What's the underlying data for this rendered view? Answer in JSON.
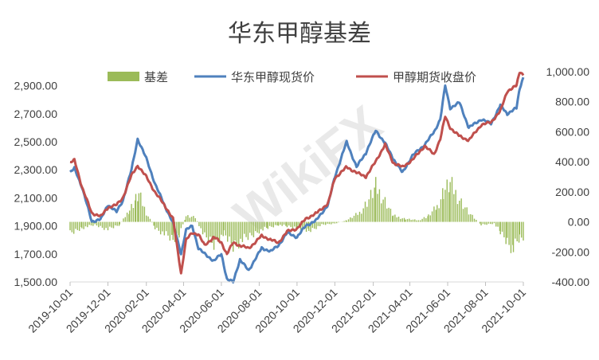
{
  "chart_data": {
    "type": "line",
    "title": "华东甲醇基差",
    "x_ticks": [
      "2019-10-01",
      "2019-12-01",
      "2020-02-01",
      "2020-04-01",
      "2020-06-01",
      "2020-08-01",
      "2020-10-01",
      "2020-12-01",
      "2021-02-01",
      "2021-04-01",
      "2021-06-01",
      "2021-08-01",
      "2021-10-01"
    ],
    "xlim": [
      "2019-10-01",
      "2021-10-01"
    ],
    "y_left": {
      "ylim": [
        1500,
        3000
      ],
      "ticks": [
        "2,900.00",
        "2,700.00",
        "2,500.00",
        "2,300.00",
        "2,100.00",
        "1,900.00",
        "1,700.00",
        "1,500.00"
      ],
      "tick_values": [
        2900,
        2700,
        2500,
        2300,
        2100,
        1900,
        1700,
        1500
      ]
    },
    "y_right": {
      "ylim": [
        -400,
        1000
      ],
      "ticks": [
        "1,000.00",
        "800.00",
        "600.00",
        "400.00",
        "200.00",
        "0.00",
        "-200.00",
        "-400.00"
      ],
      "tick_values": [
        1000,
        800,
        600,
        400,
        200,
        0,
        -200,
        -400
      ]
    },
    "legend_position": "top",
    "grid": false,
    "series": [
      {
        "name": "基差",
        "kind": "bar",
        "axis": "right",
        "color": "#9bbb59",
        "points": [
          [
            "2019-10-01",
            -80
          ],
          [
            "2019-10-20",
            -40
          ],
          [
            "2019-11-10",
            -20
          ],
          [
            "2019-12-01",
            -50
          ],
          [
            "2019-12-20",
            -20
          ],
          [
            "2020-01-05",
            80
          ],
          [
            "2020-01-15",
            150
          ],
          [
            "2020-01-20",
            180
          ],
          [
            "2020-02-01",
            60
          ],
          [
            "2020-02-15",
            -40
          ],
          [
            "2020-03-01",
            -80
          ],
          [
            "2020-03-15",
            -120
          ],
          [
            "2020-03-25",
            -80
          ],
          [
            "2020-04-05",
            40
          ],
          [
            "2020-04-20",
            30
          ],
          [
            "2020-05-05",
            -100
          ],
          [
            "2020-05-20",
            -150
          ],
          [
            "2020-06-05",
            -80
          ],
          [
            "2020-06-20",
            -160
          ],
          [
            "2020-07-05",
            -120
          ],
          [
            "2020-07-20",
            -90
          ],
          [
            "2020-08-01",
            -60
          ],
          [
            "2020-08-15",
            -40
          ],
          [
            "2020-09-01",
            -20
          ],
          [
            "2020-09-15",
            -30
          ],
          [
            "2020-10-01",
            -40
          ],
          [
            "2020-10-20",
            -60
          ],
          [
            "2020-11-10",
            -20
          ],
          [
            "2020-12-01",
            -10
          ],
          [
            "2020-12-20",
            10
          ],
          [
            "2021-01-10",
            60
          ],
          [
            "2021-01-25",
            150
          ],
          [
            "2021-02-05",
            230
          ],
          [
            "2021-02-20",
            140
          ],
          [
            "2021-03-05",
            40
          ],
          [
            "2021-03-25",
            20
          ],
          [
            "2021-04-15",
            10
          ],
          [
            "2021-05-01",
            40
          ],
          [
            "2021-05-15",
            100
          ],
          [
            "2021-05-25",
            200
          ],
          [
            "2021-06-05",
            250
          ],
          [
            "2021-06-20",
            150
          ],
          [
            "2021-07-05",
            60
          ],
          [
            "2021-07-25",
            -20
          ],
          [
            "2021-08-15",
            -10
          ],
          [
            "2021-08-25",
            -70
          ],
          [
            "2021-09-05",
            -130
          ],
          [
            "2021-09-15",
            -180
          ],
          [
            "2021-09-25",
            -110
          ],
          [
            "2021-10-01",
            -100
          ]
        ]
      },
      {
        "name": "华东甲醇现货价",
        "kind": "line",
        "axis": "left",
        "color": "#4f81bd",
        "points": [
          [
            "2019-10-01",
            2280
          ],
          [
            "2019-10-08",
            2310
          ],
          [
            "2019-10-20",
            2180
          ],
          [
            "2019-11-05",
            1930
          ],
          [
            "2019-11-20",
            1950
          ],
          [
            "2019-12-01",
            2050
          ],
          [
            "2019-12-15",
            2000
          ],
          [
            "2019-12-25",
            2080
          ],
          [
            "2020-01-08",
            2300
          ],
          [
            "2020-01-18",
            2520
          ],
          [
            "2020-02-01",
            2380
          ],
          [
            "2020-02-15",
            2200
          ],
          [
            "2020-03-01",
            2050
          ],
          [
            "2020-03-15",
            1920
          ],
          [
            "2020-03-28",
            1700
          ],
          [
            "2020-04-05",
            1870
          ],
          [
            "2020-04-15",
            1900
          ],
          [
            "2020-04-25",
            1740
          ],
          [
            "2020-05-05",
            1700
          ],
          [
            "2020-05-20",
            1650
          ],
          [
            "2020-06-01",
            1700
          ],
          [
            "2020-06-10",
            1520
          ],
          [
            "2020-06-20",
            1500
          ],
          [
            "2020-07-01",
            1660
          ],
          [
            "2020-07-15",
            1580
          ],
          [
            "2020-07-25",
            1660
          ],
          [
            "2020-08-05",
            1740
          ],
          [
            "2020-08-20",
            1720
          ],
          [
            "2020-09-01",
            1760
          ],
          [
            "2020-09-15",
            1850
          ],
          [
            "2020-10-01",
            1820
          ],
          [
            "2020-10-15",
            1900
          ],
          [
            "2020-11-01",
            1940
          ],
          [
            "2020-11-20",
            2050
          ],
          [
            "2020-12-01",
            2250
          ],
          [
            "2020-12-20",
            2500
          ],
          [
            "2021-01-05",
            2320
          ],
          [
            "2021-01-20",
            2420
          ],
          [
            "2021-02-05",
            2580
          ],
          [
            "2021-02-20",
            2490
          ],
          [
            "2021-03-05",
            2380
          ],
          [
            "2021-03-20",
            2280
          ],
          [
            "2021-04-05",
            2400
          ],
          [
            "2021-04-25",
            2480
          ],
          [
            "2021-05-10",
            2570
          ],
          [
            "2021-05-20",
            2660
          ],
          [
            "2021-05-28",
            2900
          ],
          [
            "2021-06-05",
            2740
          ],
          [
            "2021-06-20",
            2780
          ],
          [
            "2021-07-05",
            2600
          ],
          [
            "2021-07-25",
            2660
          ],
          [
            "2021-08-10",
            2630
          ],
          [
            "2021-08-25",
            2760
          ],
          [
            "2021-09-05",
            2700
          ],
          [
            "2021-09-20",
            2740
          ],
          [
            "2021-09-25",
            2880
          ],
          [
            "2021-10-01",
            2960
          ]
        ]
      },
      {
        "name": "甲醇期货收盘价",
        "kind": "line",
        "axis": "left",
        "color": "#c0504d",
        "points": [
          [
            "2019-10-01",
            2350
          ],
          [
            "2019-10-08",
            2370
          ],
          [
            "2019-10-20",
            2180
          ],
          [
            "2019-11-05",
            1990
          ],
          [
            "2019-11-20",
            1970
          ],
          [
            "2019-12-01",
            2030
          ],
          [
            "2019-12-15",
            2050
          ],
          [
            "2019-12-25",
            2100
          ],
          [
            "2020-01-08",
            2260
          ],
          [
            "2020-01-18",
            2330
          ],
          [
            "2020-02-01",
            2250
          ],
          [
            "2020-02-15",
            2140
          ],
          [
            "2020-03-01",
            2050
          ],
          [
            "2020-03-15",
            1950
          ],
          [
            "2020-03-28",
            1560
          ],
          [
            "2020-04-05",
            1800
          ],
          [
            "2020-04-15",
            1850
          ],
          [
            "2020-04-25",
            1840
          ],
          [
            "2020-05-05",
            1760
          ],
          [
            "2020-05-20",
            1820
          ],
          [
            "2020-06-01",
            1780
          ],
          [
            "2020-06-10",
            1700
          ],
          [
            "2020-06-20",
            1780
          ],
          [
            "2020-07-01",
            1760
          ],
          [
            "2020-07-15",
            1740
          ],
          [
            "2020-07-25",
            1780
          ],
          [
            "2020-08-05",
            1830
          ],
          [
            "2020-08-20",
            1800
          ],
          [
            "2020-09-01",
            1780
          ],
          [
            "2020-09-15",
            1860
          ],
          [
            "2020-10-01",
            1880
          ],
          [
            "2020-10-15",
            1950
          ],
          [
            "2020-11-01",
            1990
          ],
          [
            "2020-11-20",
            2060
          ],
          [
            "2020-12-01",
            2240
          ],
          [
            "2020-12-20",
            2320
          ],
          [
            "2021-01-05",
            2280
          ],
          [
            "2021-01-20",
            2250
          ],
          [
            "2021-02-05",
            2360
          ],
          [
            "2021-02-20",
            2480
          ],
          [
            "2021-03-05",
            2350
          ],
          [
            "2021-03-20",
            2320
          ],
          [
            "2021-04-05",
            2370
          ],
          [
            "2021-04-25",
            2470
          ],
          [
            "2021-05-10",
            2410
          ],
          [
            "2021-05-20",
            2520
          ],
          [
            "2021-05-28",
            2680
          ],
          [
            "2021-06-05",
            2600
          ],
          [
            "2021-06-20",
            2540
          ],
          [
            "2021-07-05",
            2510
          ],
          [
            "2021-07-25",
            2620
          ],
          [
            "2021-08-10",
            2640
          ],
          [
            "2021-08-25",
            2720
          ],
          [
            "2021-09-05",
            2860
          ],
          [
            "2021-09-20",
            2900
          ],
          [
            "2021-09-25",
            3000
          ],
          [
            "2021-10-01",
            2980
          ]
        ]
      }
    ]
  },
  "watermark": "WikiFX"
}
